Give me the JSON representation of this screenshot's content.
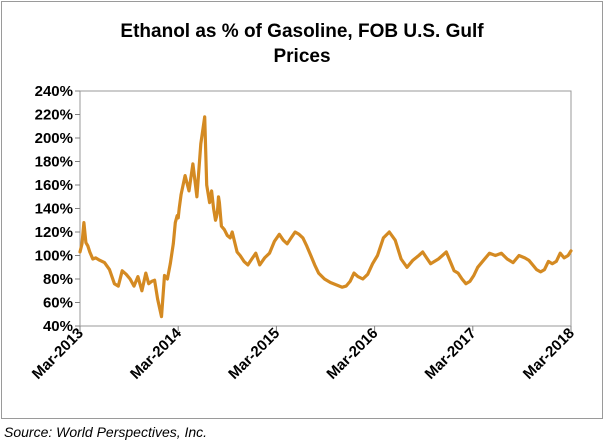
{
  "chart_data": {
    "type": "line",
    "title_line1": "Ethanol as %  of Gasoline, FOB U.S. Gulf",
    "title_line2": "Prices",
    "xlabel": "",
    "ylabel": "",
    "ylim": [
      40,
      240
    ],
    "y_ticks": [
      40,
      60,
      80,
      100,
      120,
      140,
      160,
      180,
      200,
      220,
      240
    ],
    "y_tick_labels": [
      "40%",
      "60%",
      "80%",
      "100%",
      "120%",
      "140%",
      "160%",
      "180%",
      "200%",
      "220%",
      "240%"
    ],
    "x_tick_labels": [
      "Mar-2013",
      "Mar-2014",
      "Mar-2015",
      "Mar-2016",
      "Mar-2017",
      "Mar-2018"
    ],
    "xlim": [
      2013.17,
      2018.17
    ],
    "grid": false,
    "legend": "none",
    "line_color": "#D48A22",
    "series": [
      {
        "x": [
          2013.17,
          2013.19,
          2013.21,
          2013.23,
          2013.25,
          2013.27,
          2013.3,
          2013.33,
          2013.37,
          2013.42,
          2013.47,
          2013.52,
          2013.56,
          2013.6,
          2013.64,
          2013.68,
          2013.72,
          2013.76,
          2013.8,
          2013.84,
          2013.87,
          2013.9,
          2013.93,
          2013.96,
          2014.0,
          2014.03,
          2014.06,
          2014.09,
          2014.12,
          2014.14,
          2014.16,
          2014.17,
          2014.18,
          2014.2,
          2014.24,
          2014.28,
          2014.32,
          2014.36,
          2014.4,
          2014.44,
          2014.46,
          2014.49,
          2014.51,
          2014.53,
          2014.55,
          2014.56,
          2014.57,
          2014.58,
          2014.59,
          2014.61,
          2014.64,
          2014.67,
          2014.7,
          2014.72,
          2014.74,
          2014.77,
          2014.8,
          2014.84,
          2014.88,
          2014.92,
          2014.96,
          2015.0,
          2015.05,
          2015.1,
          2015.15,
          2015.2,
          2015.24,
          2015.28,
          2015.32,
          2015.36,
          2015.4,
          2015.44,
          2015.48,
          2015.52,
          2015.56,
          2015.6,
          2015.66,
          2015.72,
          2015.78,
          2015.84,
          2015.88,
          2015.92,
          2015.96,
          2016.0,
          2016.05,
          2016.1,
          2016.15,
          2016.2,
          2016.26,
          2016.32,
          2016.38,
          2016.44,
          2016.5,
          2016.56,
          2016.62,
          2016.66,
          2016.7,
          2016.74,
          2016.78,
          2016.82,
          2016.86,
          2016.9,
          2016.94,
          2016.98,
          2017.02,
          2017.06,
          2017.1,
          2017.14,
          2017.18,
          2017.22,
          2017.28,
          2017.34,
          2017.4,
          2017.46,
          2017.52,
          2017.58,
          2017.64,
          2017.7,
          2017.74,
          2017.78,
          2017.82,
          2017.86,
          2017.9,
          2017.94,
          2017.98,
          2018.02,
          2018.06,
          2018.1,
          2018.14,
          2018.17
        ],
        "y": [
          103,
          110,
          128,
          111,
          108,
          103,
          97,
          98,
          96,
          94,
          88,
          76,
          74,
          87,
          84,
          80,
          74,
          82,
          70,
          85,
          76,
          78,
          79,
          63,
          48,
          83,
          80,
          93,
          110,
          128,
          134,
          132,
          140,
          152,
          168,
          155,
          178,
          150,
          195,
          218,
          160,
          145,
          155,
          140,
          130,
          133,
          138,
          150,
          145,
          125,
          122,
          117,
          115,
          120,
          113,
          103,
          100,
          95,
          92,
          97,
          102,
          92,
          98,
          102,
          112,
          118,
          113,
          110,
          115,
          120,
          118,
          115,
          108,
          100,
          92,
          85,
          80,
          77,
          75,
          73,
          74,
          78,
          85,
          82,
          80,
          84,
          93,
          100,
          115,
          120,
          113,
          97,
          90,
          96,
          100,
          103,
          98,
          93,
          95,
          97,
          100,
          103,
          95,
          87,
          85,
          80,
          76,
          78,
          83,
          90,
          96,
          102,
          100,
          102,
          97,
          94,
          100,
          98,
          96,
          92,
          88,
          86,
          88,
          95,
          93,
          95,
          102,
          98,
          100,
          104
        ]
      }
    ],
    "source": "Source: World Perspectives, Inc."
  }
}
